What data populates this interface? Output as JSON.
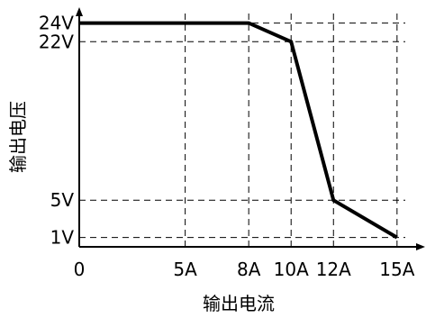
{
  "chart_data": {
    "type": "line",
    "title": "",
    "xlabel": "输出电流",
    "ylabel": "输出电压",
    "x_ticks": [
      {
        "value": 0,
        "label": "0"
      },
      {
        "value": 5,
        "label": "5A"
      },
      {
        "value": 8,
        "label": "8A"
      },
      {
        "value": 10,
        "label": "10A"
      },
      {
        "value": 12,
        "label": "12A"
      },
      {
        "value": 15,
        "label": "15A"
      }
    ],
    "y_ticks": [
      {
        "value": 1,
        "label": "1V"
      },
      {
        "value": 5,
        "label": "5V"
      },
      {
        "value": 22,
        "label": "22V"
      },
      {
        "value": 24,
        "label": "24V"
      }
    ],
    "xlim": [
      0,
      15.9
    ],
    "ylim": [
      0,
      25.7
    ],
    "grid": true,
    "series": [
      {
        "x": [
          0,
          8,
          10,
          12,
          15
        ],
        "y": [
          24,
          24,
          22,
          5,
          1
        ]
      }
    ],
    "line_color": "#000000"
  }
}
